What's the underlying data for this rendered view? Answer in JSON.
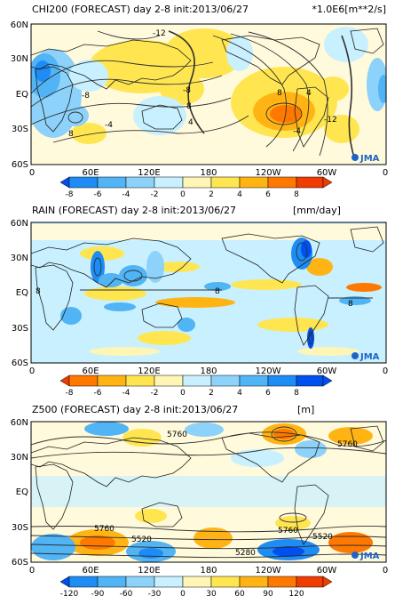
{
  "panels": [
    {
      "id": "chi200",
      "title": "CHI200 (FORECAST) day 2-8 init:2013/06/27",
      "unit": "*1.0E6[m**2/s]",
      "lat_labels": [
        "60N",
        "30N",
        "EQ",
        "30S",
        "60S"
      ],
      "lon_labels": [
        "0",
        "60E",
        "120E",
        "180",
        "120W",
        "60W",
        "0"
      ],
      "contour_labels": [
        "-12",
        "8",
        "4",
        "-8",
        "-4",
        "8",
        "4",
        "-12",
        "-8",
        "8",
        "-4"
      ],
      "colorbar": {
        "ticks": [
          "-8",
          "-6",
          "-4",
          "-2",
          "0",
          "2",
          "4",
          "6",
          "8"
        ],
        "colors": [
          "#0050f0",
          "#1e8cf5",
          "#50b4f5",
          "#8cd2fa",
          "#c8f0ff",
          "#fff5b4",
          "#ffe650",
          "#ffb414",
          "#ff7800",
          "#f03c00"
        ]
      },
      "logo": "JMA"
    },
    {
      "id": "rain",
      "title": "RAIN (FORECAST) day 2-8 init:2013/06/27",
      "unit": "[mm/day]",
      "lat_labels": [
        "60N",
        "30N",
        "EQ",
        "30S",
        "60S"
      ],
      "lon_labels": [
        "0",
        "60E",
        "120E",
        "180",
        "120W",
        "60W",
        "0"
      ],
      "contour_labels": [
        "8",
        "8",
        "8"
      ],
      "colorbar": {
        "ticks": [
          "-8",
          "-6",
          "-4",
          "-2",
          "0",
          "2",
          "4",
          "6",
          "8"
        ],
        "colors": [
          "#f03c00",
          "#ff7800",
          "#ffb414",
          "#ffe650",
          "#fff5b4",
          "#c8f0ff",
          "#8cd2fa",
          "#50b4f5",
          "#1e8cf5",
          "#0050f0"
        ]
      },
      "logo": "JMA"
    },
    {
      "id": "z500",
      "title": "Z500 (FORECAST) day 2-8 init:2013/06/27",
      "unit": "[m]",
      "lat_labels": [
        "60N",
        "30N",
        "EQ",
        "30S",
        "60S"
      ],
      "lon_labels": [
        "0",
        "60E",
        "120E",
        "180",
        "120W",
        "60W",
        "0"
      ],
      "contour_labels": [
        "5760",
        "5760",
        "5760",
        "5520",
        "5760",
        "5520",
        "5280"
      ],
      "colorbar": {
        "ticks": [
          "-120",
          "-90",
          "-60",
          "-30",
          "0",
          "30",
          "60",
          "90",
          "120"
        ],
        "colors": [
          "#0050f0",
          "#1e8cf5",
          "#50b4f5",
          "#8cd2fa",
          "#c8f0ff",
          "#fff5b4",
          "#ffe650",
          "#ffb414",
          "#ff7800",
          "#f03c00"
        ]
      },
      "logo": "JMA"
    }
  ]
}
